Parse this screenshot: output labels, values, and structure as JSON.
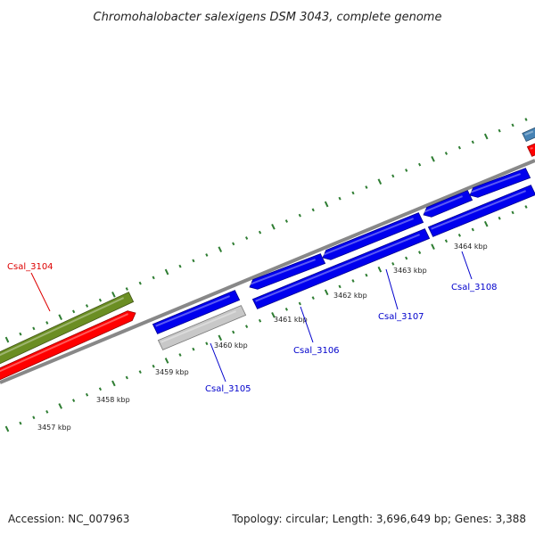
{
  "title": "Chromohalobacter salexigens DSM 3043, complete genome",
  "footer": {
    "accession": "Accession: NC_007963",
    "summary": "Topology: circular; Length: 3,696,649 bp; Genes: 3,388"
  },
  "colors": {
    "cds": "#0000ee",
    "rna": "#c8c8c8",
    "red_track": "#ff0000",
    "olive_track": "#6b8e23",
    "steelblue_track": "#4682b4",
    "backbone": "#888888",
    "ticks": "#2e7d32",
    "label_blue": "#0000cc",
    "label_red": "#dd0000"
  },
  "scale_ticks": [
    {
      "label": "3457 kbp"
    },
    {
      "label": "3458 kbp"
    },
    {
      "label": "3459 kbp"
    },
    {
      "label": "3460 kbp"
    },
    {
      "label": "3461 kbp"
    },
    {
      "label": "3462 kbp"
    },
    {
      "label": "3463 kbp"
    },
    {
      "label": "3464 kbp"
    }
  ],
  "gene_labels": [
    {
      "text": "Csal_3104",
      "color": "red"
    },
    {
      "text": "Csal_3105",
      "color": "blue"
    },
    {
      "text": "Csal_3106",
      "color": "blue"
    },
    {
      "text": "Csal_3107",
      "color": "blue"
    },
    {
      "text": "Csal_3108",
      "color": "blue"
    }
  ]
}
